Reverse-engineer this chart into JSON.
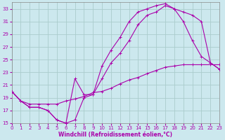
{
  "xlabel": "Windchill (Refroidissement éolien,°C)",
  "bg_color": "#cce8ee",
  "grid_color": "#aacccc",
  "line_color": "#aa00aa",
  "xmin": 0,
  "xmax": 23,
  "ymin": 15,
  "ymax": 34,
  "yticks": [
    15,
    17,
    19,
    21,
    23,
    25,
    27,
    29,
    31,
    33
  ],
  "xticks": [
    0,
    1,
    2,
    3,
    4,
    5,
    6,
    7,
    8,
    9,
    10,
    11,
    12,
    13,
    14,
    15,
    16,
    17,
    18,
    19,
    20,
    21,
    22,
    23
  ],
  "line1_x": [
    0,
    1,
    2,
    3,
    4,
    5,
    6,
    7,
    8,
    9,
    10,
    11,
    12,
    13,
    14,
    15,
    16,
    17,
    18,
    19,
    20,
    21,
    22,
    23
  ],
  "line1_y": [
    20.0,
    18.5,
    17.5,
    17.5,
    17.0,
    15.5,
    15.0,
    15.5,
    19.0,
    19.5,
    22.0,
    24.5,
    26.0,
    28.0,
    30.5,
    32.0,
    32.5,
    33.5,
    33.0,
    31.0,
    28.0,
    25.5,
    24.5,
    23.5
  ],
  "line2_x": [
    0,
    1,
    2,
    3,
    4,
    5,
    6,
    7,
    8,
    9,
    10,
    11,
    12,
    13,
    14,
    15,
    16,
    17,
    18,
    19,
    20,
    21,
    22,
    23
  ],
  "line2_y": [
    20.0,
    18.5,
    17.5,
    17.5,
    17.0,
    15.5,
    15.0,
    22.0,
    19.5,
    19.5,
    24.0,
    26.5,
    28.5,
    31.0,
    32.5,
    33.0,
    33.5,
    33.8,
    33.0,
    32.5,
    32.0,
    31.0,
    24.5,
    23.5
  ],
  "line3_x": [
    0,
    1,
    2,
    3,
    4,
    5,
    6,
    7,
    8,
    9,
    10,
    11,
    12,
    13,
    14,
    15,
    16,
    17,
    18,
    19,
    20,
    21,
    22,
    23
  ],
  "line3_y": [
    20.0,
    18.5,
    18.0,
    18.0,
    18.0,
    18.0,
    18.5,
    18.8,
    19.2,
    19.8,
    20.0,
    20.5,
    21.2,
    21.8,
    22.2,
    22.8,
    23.3,
    23.8,
    24.0,
    24.2,
    24.2,
    24.2,
    24.2,
    24.2
  ]
}
